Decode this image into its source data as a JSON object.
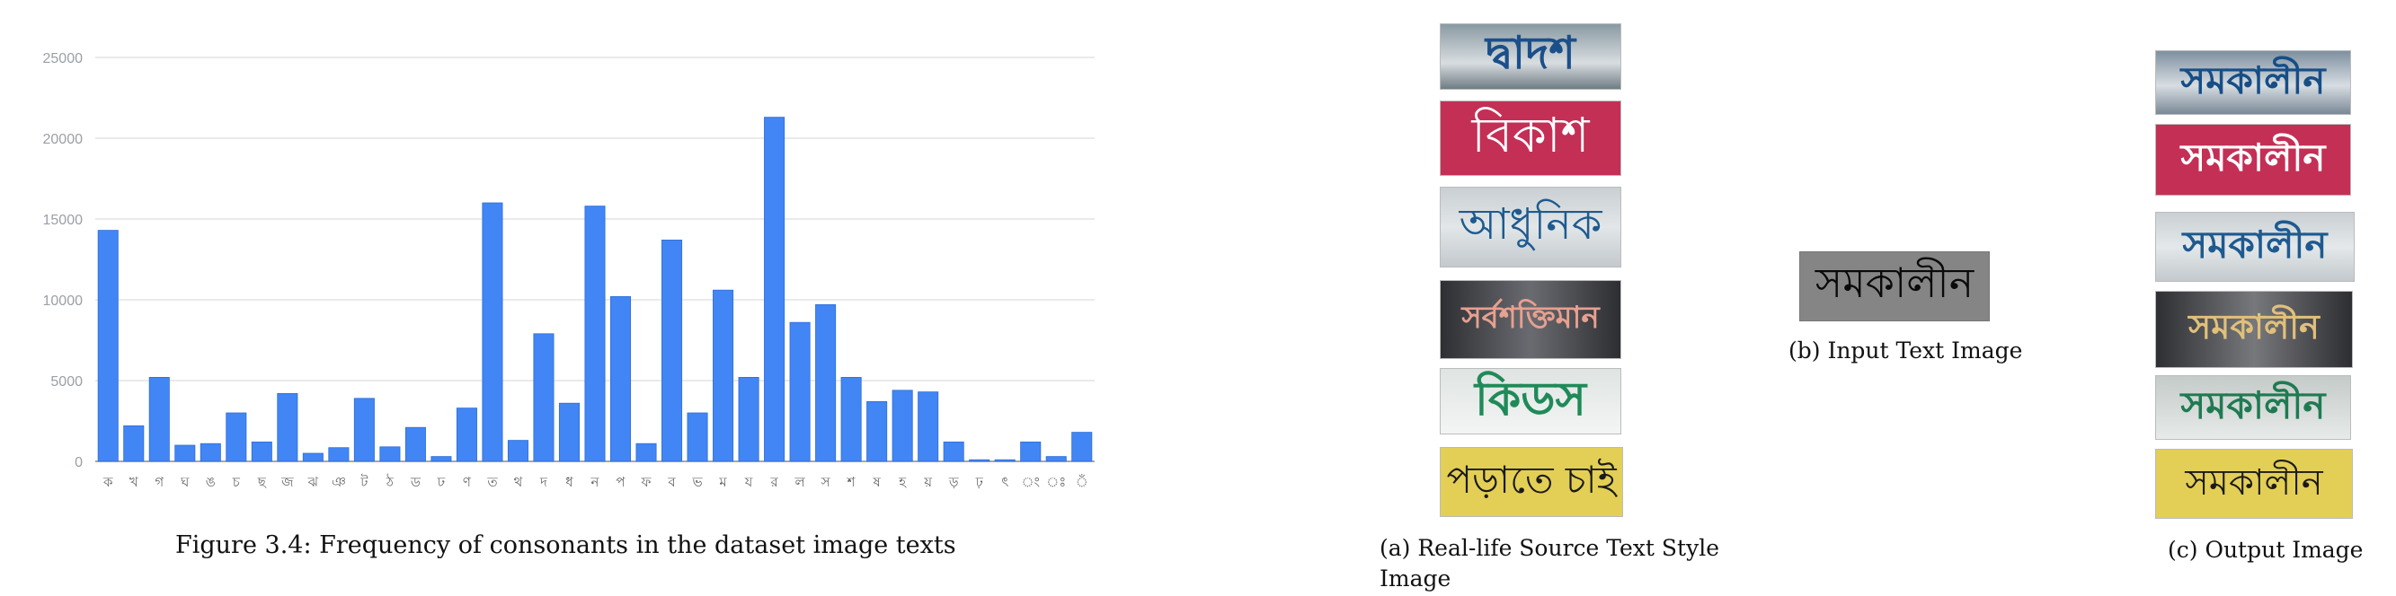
{
  "figure_caption": "Figure 3.4: Frequency of consonants in the dataset image texts",
  "chart_data": {
    "type": "bar",
    "categories": [
      "ক",
      "খ",
      "গ",
      "ঘ",
      "ঙ",
      "চ",
      "ছ",
      "জ",
      "ঝ",
      "ঞ",
      "ট",
      "ঠ",
      "ড",
      "ঢ",
      "ণ",
      "ত",
      "থ",
      "দ",
      "ধ",
      "ন",
      "প",
      "ফ",
      "ব",
      "ভ",
      "ম",
      "য",
      "র",
      "ল",
      "স",
      "শ",
      "ষ",
      "হ",
      "য়",
      "ড়",
      "ঢ়",
      "ৎ",
      "ং",
      "ঃ",
      "ঁ"
    ],
    "values": [
      14300,
      2200,
      5200,
      1000,
      1100,
      3000,
      1200,
      4200,
      500,
      850,
      3900,
      900,
      2100,
      300,
      3300,
      16000,
      1300,
      7900,
      3600,
      15800,
      10200,
      1100,
      13700,
      3000,
      10600,
      5200,
      21300,
      8600,
      9700,
      5200,
      3700,
      4400,
      4300,
      1200,
      100,
      100,
      1200,
      300,
      1800
    ],
    "ylim": [
      0,
      25000
    ],
    "yticks": [
      "0",
      "5000",
      "10000",
      "15000",
      "20000",
      "25000"
    ],
    "grid": true,
    "color": "#4285f4"
  },
  "source_panel": {
    "caption_line1": "(a) Real-life Source Text Style",
    "caption_line2": "Image",
    "words": [
      "দ্বাদশ",
      "বিকাশ",
      "আধুনিক",
      "সর্বশক্তিমান",
      "কিডস",
      "পড়াতে চাই"
    ]
  },
  "input_panel": {
    "caption": "(b) Input Text Image",
    "word": "সমকালীন"
  },
  "output_panel": {
    "caption": "(c) Output Image",
    "word": "সমকালীন"
  }
}
